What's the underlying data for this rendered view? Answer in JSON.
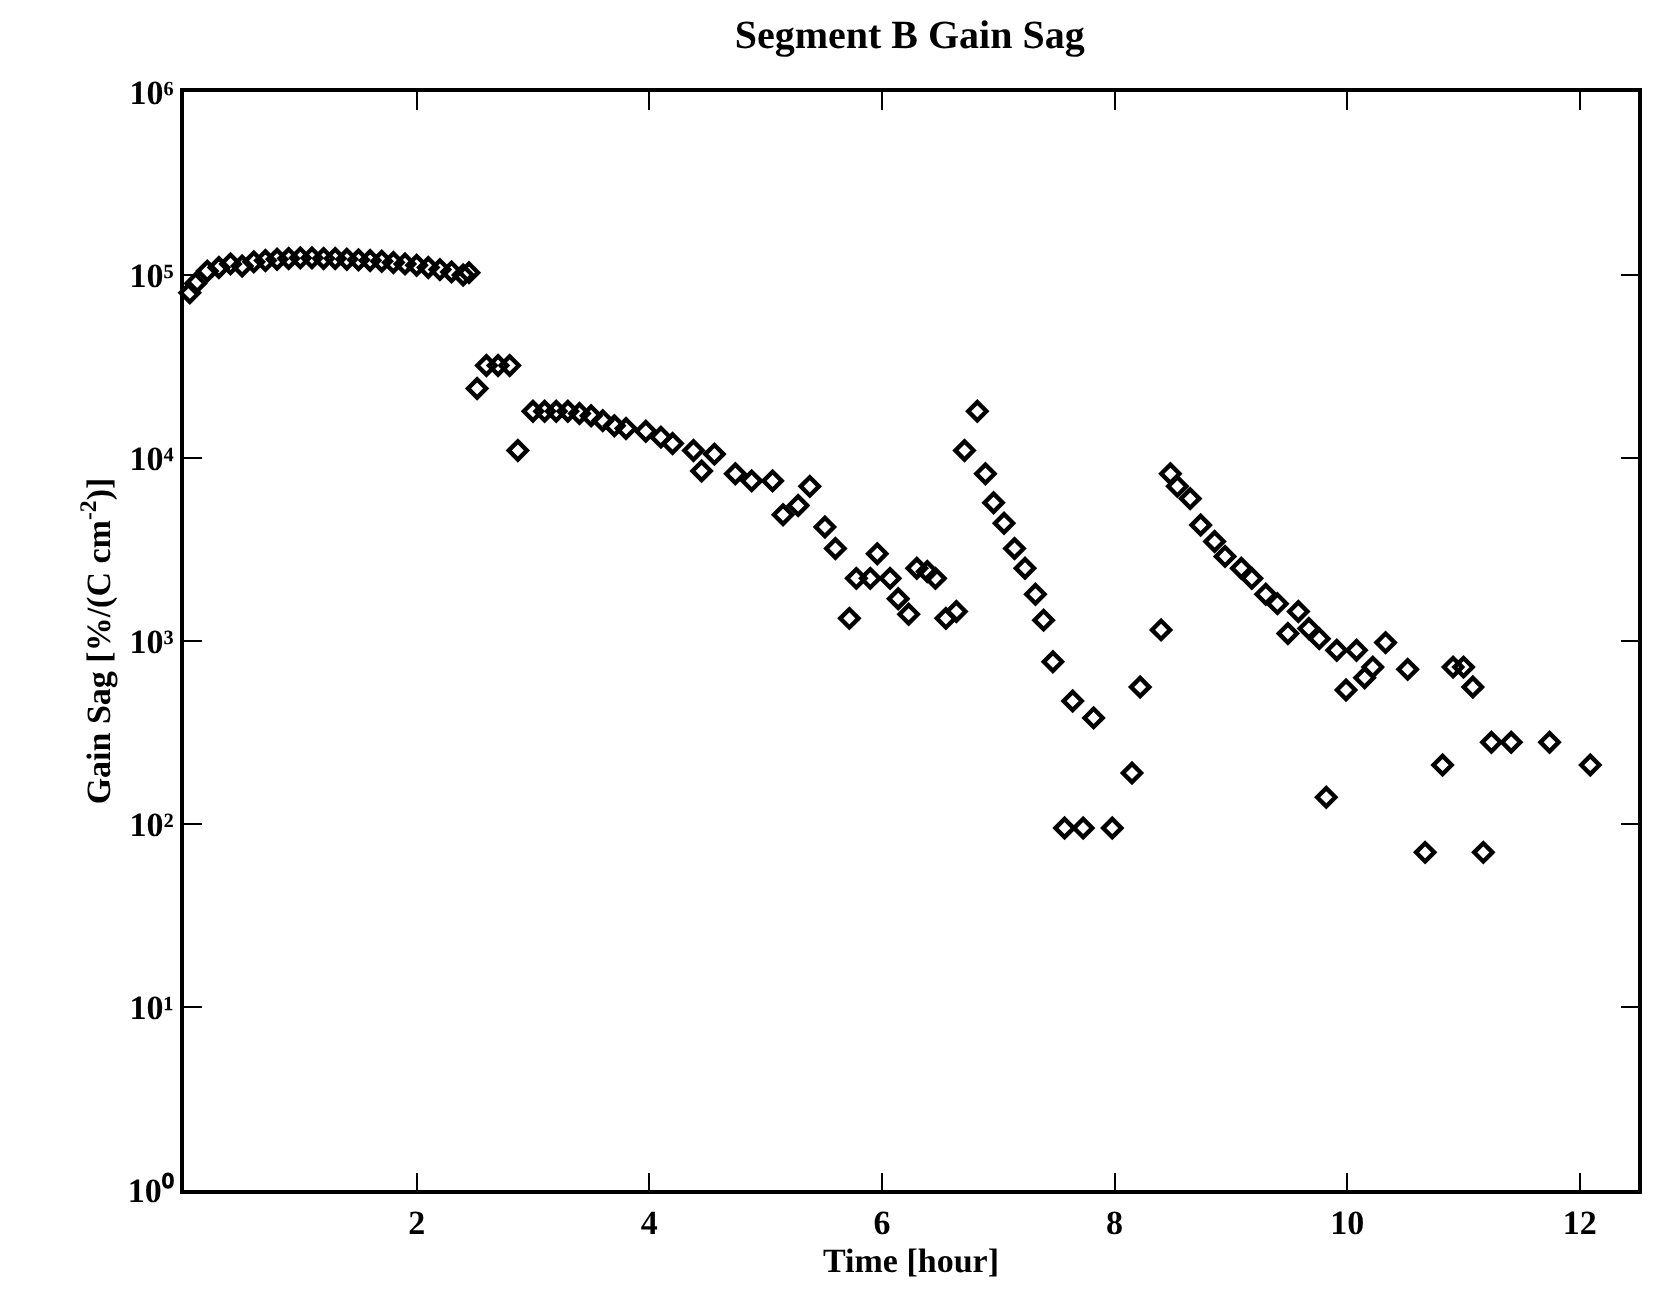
{
  "chart_data": {
    "type": "scatter",
    "title": "Segment B Gain Sag",
    "xlabel": "Time [hour]",
    "ylabel": "Gain Sag [%/(C cm$^{-2}$)]",
    "log": "y",
    "marker": "diamond",
    "xlim": [
      0,
      12.5
    ],
    "xticks": [
      2,
      4,
      6,
      8,
      10,
      12
    ],
    "ylim": [
      1,
      1000000
    ],
    "yticks": [
      {
        "value": 1,
        "label": "10⁰"
      },
      {
        "value": 10,
        "label": "10¹"
      },
      {
        "value": 100,
        "label": "10²"
      },
      {
        "value": 1000,
        "label": "10³"
      },
      {
        "value": 10000,
        "label": "10⁴"
      },
      {
        "value": 100000,
        "label": "10⁵"
      },
      {
        "value": 1000000,
        "label": "10⁶"
      }
    ],
    "series": [
      {
        "color": "#000000",
        "x": [
          0.05,
          0.1,
          0.2,
          0.3,
          0.4,
          0.5,
          0.6,
          0.7,
          0.8,
          0.9,
          1.0,
          1.1,
          1.2,
          1.3,
          1.4,
          1.5,
          1.6,
          1.7,
          1.8,
          1.9,
          2.0,
          2.1,
          2.2,
          2.3,
          2.4,
          2.45,
          2.52,
          2.6,
          2.7,
          2.8,
          2.87,
          3.0,
          3.1,
          3.2,
          3.3,
          3.4,
          3.5,
          3.6,
          3.7,
          3.8,
          3.97,
          4.1,
          4.2,
          4.38,
          4.45,
          4.56,
          4.74,
          4.88,
          5.06,
          5.15,
          5.28,
          5.38,
          5.51,
          5.6,
          5.72,
          5.78,
          5.9,
          5.96,
          6.07,
          6.14,
          6.23,
          6.3,
          6.39,
          6.46,
          6.55,
          6.64,
          6.71,
          6.82,
          6.89,
          6.96,
          7.05,
          7.14,
          7.23,
          7.32,
          7.39,
          7.47,
          7.57,
          7.64,
          7.73,
          7.82,
          7.98,
          8.15,
          8.22,
          8.4,
          8.48,
          8.54,
          8.65,
          8.74,
          8.86,
          8.95,
          9.09,
          9.18,
          9.3,
          9.4,
          9.49,
          9.58,
          9.67,
          9.76,
          9.82,
          9.91,
          9.99,
          10.08,
          10.15,
          10.22,
          10.33,
          10.52,
          10.67,
          10.82,
          10.91,
          11.0,
          11.08,
          11.17,
          11.24,
          11.41,
          11.74,
          12.09
        ],
        "values": [
          80000,
          90000,
          105000,
          110000,
          115000,
          112000,
          118000,
          120000,
          122000,
          123000,
          124000,
          124000,
          123000,
          123000,
          122000,
          121000,
          120000,
          119000,
          117000,
          115000,
          113000,
          110000,
          107000,
          104000,
          100000,
          103000,
          24000,
          32000,
          32000,
          32000,
          11000,
          18000,
          18000,
          18000,
          18000,
          17500,
          17000,
          16000,
          15000,
          14500,
          14000,
          13000,
          12000,
          11000,
          8500,
          10500,
          8200,
          7500,
          7500,
          4900,
          5500,
          7000,
          4200,
          3200,
          1330,
          2200,
          2200,
          3000,
          2200,
          1700,
          1400,
          2500,
          2400,
          2200,
          1330,
          1450,
          11000,
          18000,
          8200,
          5700,
          4400,
          3200,
          2500,
          1800,
          1300,
          770,
          95,
          470,
          95,
          380,
          95,
          190,
          560,
          1150,
          8200,
          7000,
          6000,
          4300,
          3500,
          2900,
          2500,
          2200,
          1800,
          1600,
          1100,
          1450,
          1170,
          1030,
          140,
          890,
          540,
          890,
          630,
          720,
          980,
          700,
          70,
          210,
          720,
          720,
          560,
          70,
          280,
          280,
          280,
          210
        ]
      }
    ]
  }
}
